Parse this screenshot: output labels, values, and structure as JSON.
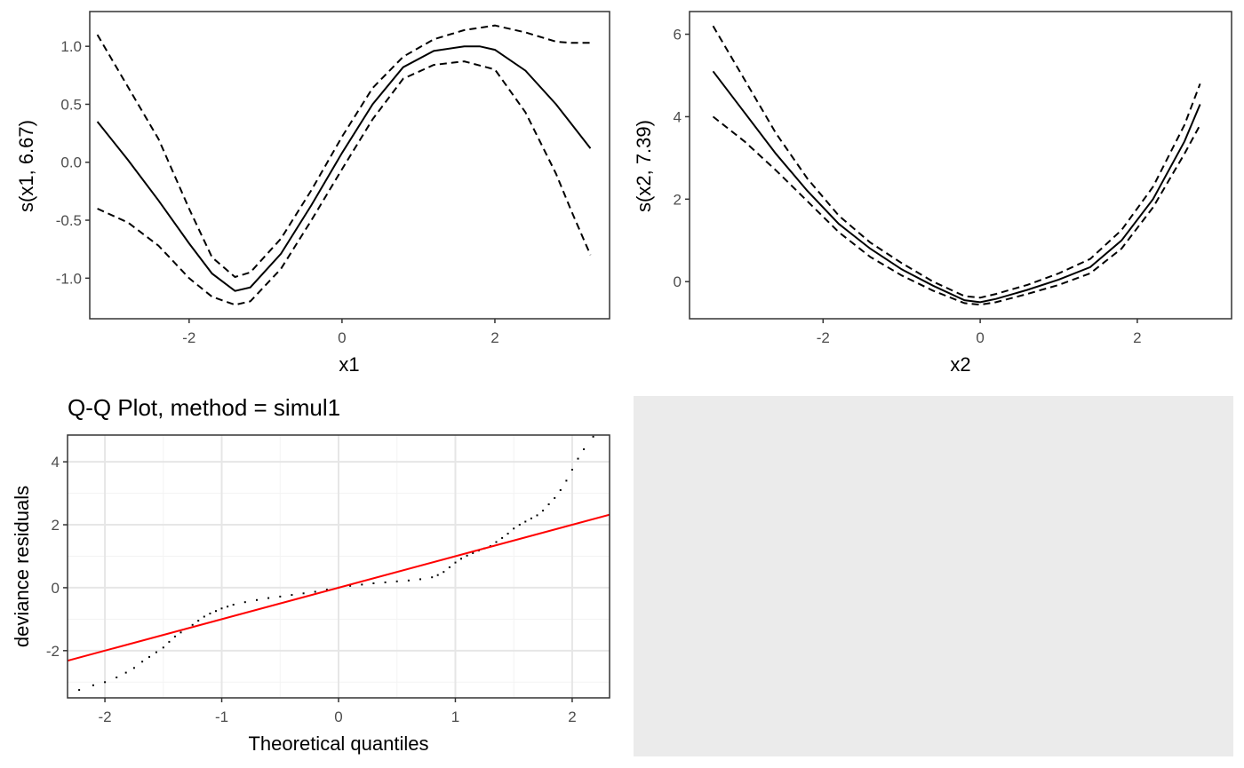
{
  "chart_data": [
    {
      "type": "line",
      "title": "",
      "xlabel": "x1",
      "ylabel": "s(x1, 6.67)",
      "xlim": [
        -3.3,
        3.5
      ],
      "ylim": [
        -1.35,
        1.3
      ],
      "xticks": [
        -2,
        0,
        2
      ],
      "yticks": [
        -1.0,
        -0.5,
        0.0,
        0.5,
        1.0
      ],
      "ytick_labels": [
        "-1.0",
        "-0.5",
        "0.0",
        "0.5",
        "1.0"
      ],
      "grid": false,
      "series": [
        {
          "role": "fit",
          "style": "solid",
          "x": [
            -3.2,
            -2.8,
            -2.4,
            -2.0,
            -1.7,
            -1.4,
            -1.2,
            -0.8,
            -0.4,
            0.0,
            0.4,
            0.8,
            1.2,
            1.6,
            1.8,
            2.0,
            2.4,
            2.8,
            3.25
          ],
          "y": [
            0.35,
            0.02,
            -0.33,
            -0.7,
            -0.96,
            -1.11,
            -1.08,
            -0.79,
            -0.37,
            0.08,
            0.5,
            0.82,
            0.96,
            1.0,
            1.0,
            0.97,
            0.79,
            0.5,
            0.12
          ]
        },
        {
          "role": "upper",
          "style": "dashed",
          "x": [
            -3.2,
            -2.8,
            -2.4,
            -2.0,
            -1.7,
            -1.4,
            -1.2,
            -0.8,
            -0.4,
            0.0,
            0.4,
            0.8,
            1.2,
            1.6,
            2.0,
            2.4,
            2.8,
            3.0,
            3.25
          ],
          "y": [
            1.1,
            0.65,
            0.2,
            -0.4,
            -0.82,
            -0.99,
            -0.95,
            -0.66,
            -0.24,
            0.22,
            0.64,
            0.91,
            1.06,
            1.14,
            1.18,
            1.12,
            1.04,
            1.03,
            1.03
          ]
        },
        {
          "role": "lower",
          "style": "dashed",
          "x": [
            -3.2,
            -2.8,
            -2.4,
            -2.0,
            -1.7,
            -1.4,
            -1.2,
            -0.8,
            -0.4,
            0.0,
            0.4,
            0.8,
            1.2,
            1.6,
            2.0,
            2.4,
            2.8,
            3.0,
            3.25
          ],
          "y": [
            -0.4,
            -0.52,
            -0.72,
            -1.0,
            -1.16,
            -1.23,
            -1.2,
            -0.92,
            -0.5,
            -0.06,
            0.37,
            0.72,
            0.84,
            0.87,
            0.8,
            0.43,
            -0.1,
            -0.42,
            -0.8
          ]
        }
      ]
    },
    {
      "type": "line",
      "title": "",
      "xlabel": "x2",
      "ylabel": "s(x2, 7.39)",
      "xlim": [
        -3.7,
        3.2
      ],
      "ylim": [
        -0.9,
        6.55
      ],
      "xticks": [
        -2,
        0,
        2
      ],
      "yticks": [
        0,
        2,
        4,
        6
      ],
      "ytick_labels": [
        "0",
        "2",
        "4",
        "6"
      ],
      "grid": false,
      "series": [
        {
          "role": "fit",
          "style": "solid",
          "x": [
            -3.4,
            -3.0,
            -2.6,
            -2.2,
            -1.8,
            -1.4,
            -1.0,
            -0.6,
            -0.2,
            0.0,
            0.2,
            0.6,
            1.0,
            1.4,
            1.8,
            2.2,
            2.6,
            2.8
          ],
          "y": [
            5.1,
            4.1,
            3.1,
            2.2,
            1.4,
            0.8,
            0.3,
            -0.1,
            -0.45,
            -0.5,
            -0.42,
            -0.2,
            0.05,
            0.35,
            1.0,
            2.0,
            3.4,
            4.3
          ]
        },
        {
          "role": "upper",
          "style": "dashed",
          "x": [
            -3.4,
            -3.0,
            -2.6,
            -2.2,
            -1.8,
            -1.4,
            -1.0,
            -0.6,
            -0.2,
            0.0,
            0.2,
            0.6,
            1.0,
            1.4,
            1.8,
            2.2,
            2.6,
            2.8
          ],
          "y": [
            6.2,
            4.9,
            3.6,
            2.5,
            1.6,
            0.95,
            0.45,
            0.0,
            -0.35,
            -0.39,
            -0.3,
            -0.08,
            0.2,
            0.55,
            1.25,
            2.3,
            3.8,
            4.8
          ]
        },
        {
          "role": "lower",
          "style": "dashed",
          "x": [
            -3.4,
            -3.0,
            -2.6,
            -2.2,
            -1.8,
            -1.4,
            -1.0,
            -0.6,
            -0.2,
            0.0,
            0.2,
            0.6,
            1.0,
            1.4,
            1.8,
            2.2,
            2.6,
            2.8
          ],
          "y": [
            4.0,
            3.4,
            2.7,
            1.95,
            1.2,
            0.6,
            0.15,
            -0.22,
            -0.52,
            -0.56,
            -0.5,
            -0.3,
            -0.08,
            0.2,
            0.8,
            1.8,
            3.1,
            3.8
          ]
        }
      ]
    },
    {
      "type": "scatter",
      "title": "Q-Q Plot, method = simul1",
      "xlabel": "Theoretical quantiles",
      "ylabel": "deviance residuals",
      "xlim": [
        -2.32,
        2.32
      ],
      "ylim": [
        -3.5,
        4.85
      ],
      "xticks": [
        -2,
        -1,
        0,
        1,
        2
      ],
      "yticks": [
        -2,
        0,
        2,
        4
      ],
      "ytick_labels": [
        "-2",
        "0",
        "2",
        "4"
      ],
      "grid": true,
      "reference_line": {
        "color": "#ff0000",
        "intercept": 0.0,
        "slope": 1.0
      },
      "points": [
        [
          -2.22,
          -3.25
        ],
        [
          -2.1,
          -3.1
        ],
        [
          -2.0,
          -3.0
        ],
        [
          -1.9,
          -2.85
        ],
        [
          -1.82,
          -2.7
        ],
        [
          -1.75,
          -2.55
        ],
        [
          -1.68,
          -2.35
        ],
        [
          -1.62,
          -2.2
        ],
        [
          -1.56,
          -2.05
        ],
        [
          -1.5,
          -1.9
        ],
        [
          -1.45,
          -1.72
        ],
        [
          -1.4,
          -1.55
        ],
        [
          -1.35,
          -1.42
        ],
        [
          -1.3,
          -1.3
        ],
        [
          -1.25,
          -1.18
        ],
        [
          -1.2,
          -1.05
        ],
        [
          -1.15,
          -0.92
        ],
        [
          -1.1,
          -0.82
        ],
        [
          -1.05,
          -0.74
        ],
        [
          -1.0,
          -0.66
        ],
        [
          -0.95,
          -0.6
        ],
        [
          -0.9,
          -0.54
        ],
        [
          -0.8,
          -0.46
        ],
        [
          -0.7,
          -0.39
        ],
        [
          -0.6,
          -0.33
        ],
        [
          -0.5,
          -0.28
        ],
        [
          -0.4,
          -0.23
        ],
        [
          -0.3,
          -0.18
        ],
        [
          -0.2,
          -0.13
        ],
        [
          -0.1,
          -0.06
        ],
        [
          0.0,
          0.0
        ],
        [
          0.1,
          0.06
        ],
        [
          0.2,
          0.1
        ],
        [
          0.3,
          0.14
        ],
        [
          0.4,
          0.17
        ],
        [
          0.5,
          0.2
        ],
        [
          0.6,
          0.23
        ],
        [
          0.7,
          0.27
        ],
        [
          0.8,
          0.33
        ],
        [
          0.85,
          0.4
        ],
        [
          0.9,
          0.5
        ],
        [
          0.95,
          0.65
        ],
        [
          1.0,
          0.8
        ],
        [
          1.05,
          0.92
        ],
        [
          1.1,
          1.02
        ],
        [
          1.15,
          1.1
        ],
        [
          1.2,
          1.18
        ],
        [
          1.25,
          1.25
        ],
        [
          1.3,
          1.32
        ],
        [
          1.35,
          1.45
        ],
        [
          1.4,
          1.58
        ],
        [
          1.45,
          1.72
        ],
        [
          1.5,
          1.88
        ],
        [
          1.55,
          2.0
        ],
        [
          1.6,
          2.1
        ],
        [
          1.65,
          2.2
        ],
        [
          1.7,
          2.3
        ],
        [
          1.75,
          2.45
        ],
        [
          1.8,
          2.65
        ],
        [
          1.85,
          2.85
        ],
        [
          1.9,
          3.1
        ],
        [
          1.95,
          3.4
        ],
        [
          2.0,
          3.75
        ],
        [
          2.05,
          4.1
        ],
        [
          2.1,
          4.4
        ],
        [
          2.18,
          4.8
        ]
      ]
    }
  ]
}
